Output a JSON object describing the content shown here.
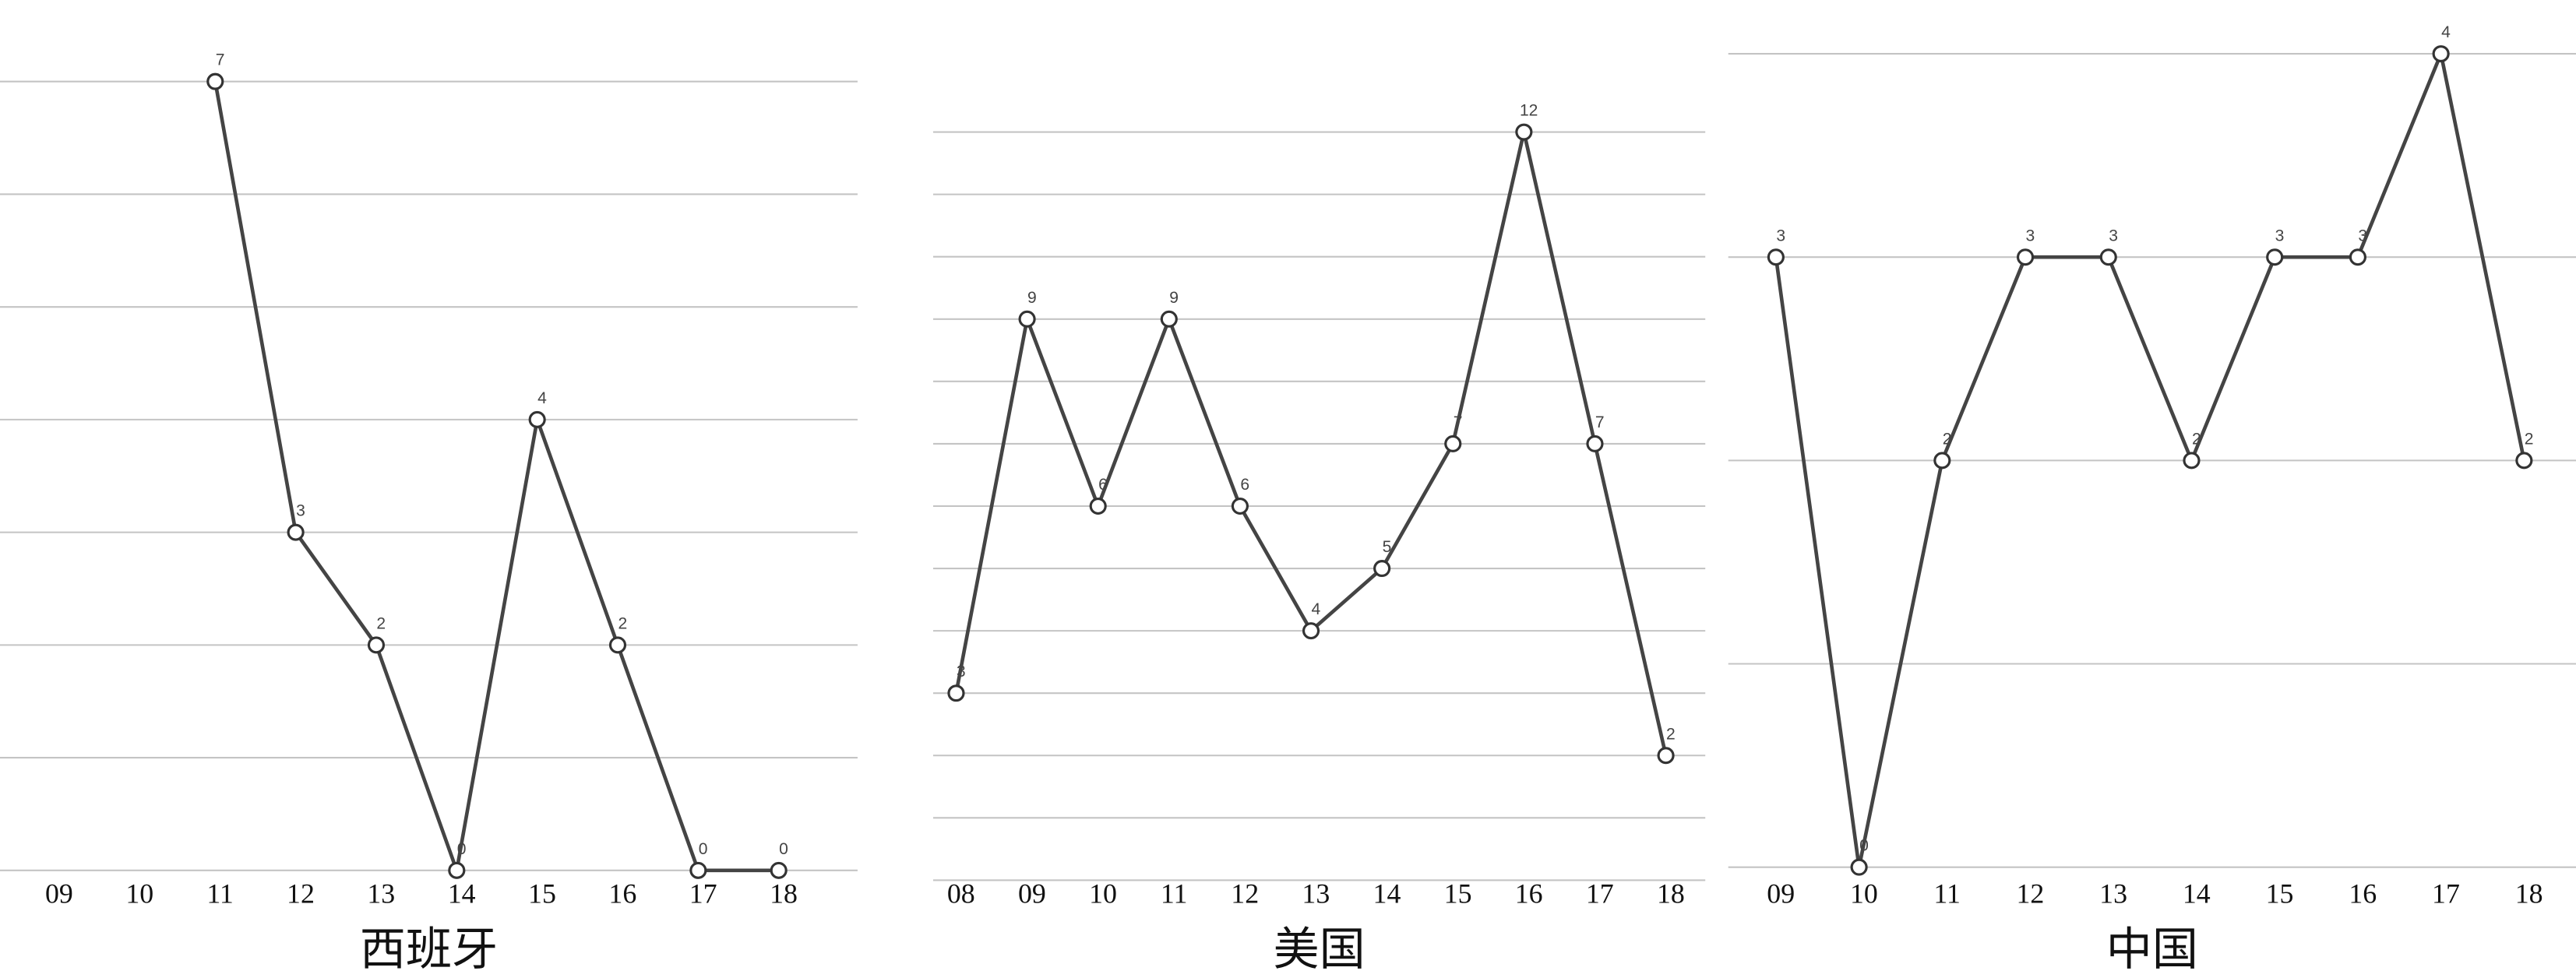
{
  "chart_data": [
    {
      "type": "line",
      "title": "西班牙",
      "categories": [
        "09",
        "10",
        "11",
        "12",
        "13",
        "14",
        "15",
        "16",
        "17",
        "18"
      ],
      "values": [
        null,
        null,
        7,
        3,
        2,
        0,
        4,
        2,
        0,
        0
      ],
      "color": "#444444",
      "ylim": [
        0,
        7
      ],
      "yticks": [
        0,
        1,
        2,
        3,
        4,
        5,
        6,
        7
      ],
      "grid": true
    },
    {
      "type": "line",
      "title": "美国",
      "categories": [
        "08",
        "09",
        "10",
        "11",
        "12",
        "13",
        "14",
        "15",
        "16",
        "17",
        "18"
      ],
      "values": [
        3,
        9,
        6,
        9,
        6,
        4,
        5,
        7,
        12,
        7,
        2
      ],
      "color": "#444444",
      "ylim": [
        0,
        12
      ],
      "yticks": [
        0,
        1,
        2,
        3,
        4,
        5,
        6,
        7,
        8,
        9,
        10,
        11,
        12
      ],
      "grid": true
    },
    {
      "type": "line",
      "title": "中国",
      "categories": [
        "09",
        "10",
        "11",
        "12",
        "13",
        "14",
        "15",
        "16",
        "17",
        "18"
      ],
      "values": [
        3,
        0,
        2,
        3,
        3,
        2,
        3,
        3,
        4,
        2
      ],
      "color": "#444444",
      "ylim": [
        0,
        4
      ],
      "yticks": [
        0,
        1,
        2,
        3,
        4
      ],
      "grid": true
    }
  ]
}
